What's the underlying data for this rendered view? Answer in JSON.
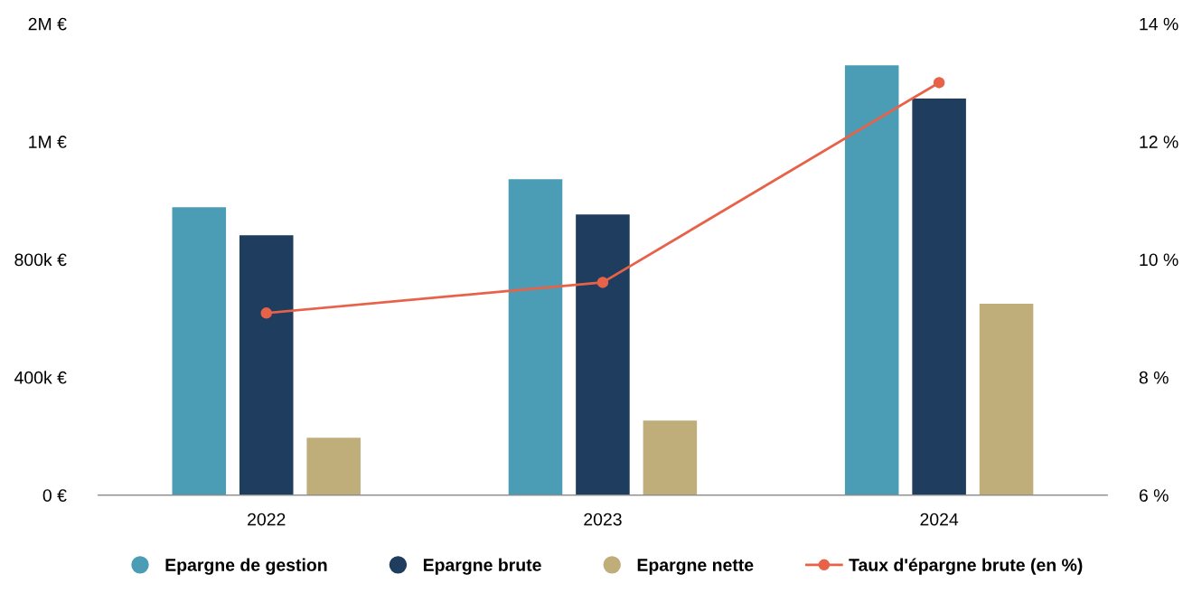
{
  "chart_data": {
    "type": "bar",
    "categories": [
      "2022",
      "2023",
      "2024"
    ],
    "series": [
      {
        "name": "Epargne de gestion",
        "color": "#4a9db5",
        "values": [
          977000,
          1072000,
          1459000
        ]
      },
      {
        "name": "Epargne brute",
        "color": "#1f3d5f",
        "values": [
          882000,
          953000,
          1346000
        ]
      },
      {
        "name": "Epargne nette",
        "color": "#bfad7a",
        "values": [
          195000,
          253000,
          650000
        ]
      },
      {
        "name": "Taux d'épargne brute (en %)",
        "type": "line",
        "axis": "y2",
        "color": "#e8624a",
        "marker": "circle",
        "values": [
          9.09,
          9.61,
          13.0
        ]
      }
    ],
    "ylim": [
      0,
      1600000
    ],
    "yticks": [
      {
        "value": 0,
        "label": "0 €"
      },
      {
        "value": 400000,
        "label": "400k €"
      },
      {
        "value": 800000,
        "label": "800k €"
      },
      {
        "value": 1200000,
        "label": "1M €"
      },
      {
        "value": 1600000,
        "label": "2M €"
      }
    ],
    "y2lim": [
      6,
      14
    ],
    "y2ticks": [
      {
        "value": 6,
        "label": "6 %"
      },
      {
        "value": 8,
        "label": "8 %"
      },
      {
        "value": 10,
        "label": "10 %"
      },
      {
        "value": 12,
        "label": "12 %"
      },
      {
        "value": 14,
        "label": "14 %"
      }
    ],
    "legend": "bottom",
    "grid": false
  }
}
